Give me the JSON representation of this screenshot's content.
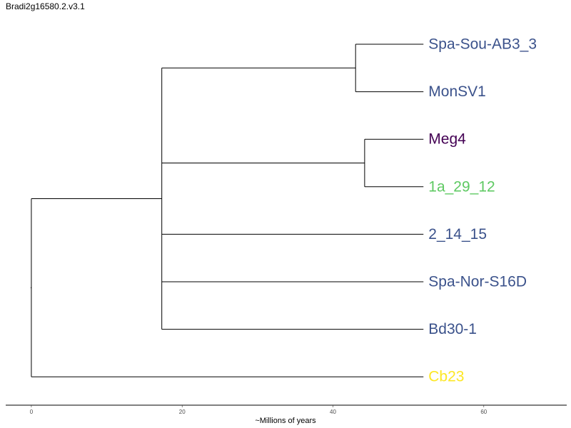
{
  "title": "Bradi2g16580.2.v3.1",
  "axis": {
    "label": "~Millions of years",
    "ticks": [
      0,
      20,
      40,
      60
    ],
    "range": [
      -3.4,
      71
    ]
  },
  "tree": {
    "tips": [
      {
        "id": "spa-sou-ab3-3",
        "label": "Spa-Sou-AB3_3",
        "color": "#3b528b"
      },
      {
        "id": "monsv1",
        "label": "MonSV1",
        "color": "#3b528b"
      },
      {
        "id": "meg4",
        "label": "Meg4",
        "color": "#440154"
      },
      {
        "id": "1a-29-12",
        "label": "1a_29_12",
        "color": "#5ec962"
      },
      {
        "id": "2-14-15",
        "label": "2_14_15",
        "color": "#3b528b"
      },
      {
        "id": "spa-nor-s16d",
        "label": "Spa-Nor-S16D",
        "color": "#3b528b"
      },
      {
        "id": "bd30-1",
        "label": "Bd30-1",
        "color": "#3b528b"
      },
      {
        "id": "cb23",
        "label": "Cb23",
        "color": "#fde725"
      }
    ],
    "tip_depth": 52,
    "nodes": [
      {
        "id": "root",
        "age": 0,
        "children": [
          "n1",
          "cb23"
        ]
      },
      {
        "id": "n1",
        "age": 17.3,
        "children": [
          "n2",
          "n3",
          "2-14-15",
          "spa-nor-s16d",
          "bd30-1"
        ]
      },
      {
        "id": "n2",
        "age": 43,
        "children": [
          "spa-sou-ab3-3",
          "monsv1"
        ]
      },
      {
        "id": "n3",
        "age": 44.2,
        "children": [
          "meg4",
          "1a-29-12"
        ]
      }
    ]
  }
}
